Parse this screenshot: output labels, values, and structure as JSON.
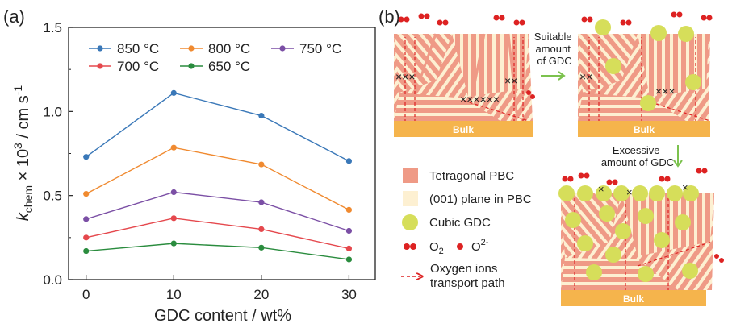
{
  "panel_a": {
    "label": "(a)",
    "chart_data": {
      "type": "line",
      "xlabel": "GDC content / wt%",
      "ylabel_parts": [
        "k",
        "chem",
        " × 10",
        "3",
        " / cm s",
        "-1"
      ],
      "x": [
        0,
        10,
        20,
        30
      ],
      "xticks": [
        "0",
        "10",
        "20",
        "30"
      ],
      "ylim": [
        0.0,
        1.5
      ],
      "yticks": [
        "0.0",
        "0.5",
        "1.0",
        "1.5"
      ],
      "grid": false,
      "legend_placement": "top",
      "series": [
        {
          "name": "850 °C",
          "color": "#3a78b8",
          "values": [
            0.73,
            1.11,
            0.975,
            0.705
          ]
        },
        {
          "name": "800 °C",
          "color": "#f08a30",
          "values": [
            0.51,
            0.785,
            0.685,
            0.415
          ]
        },
        {
          "name": "750 °C",
          "color": "#7b4fa5",
          "values": [
            0.36,
            0.52,
            0.46,
            0.29
          ]
        },
        {
          "name": "700 °C",
          "color": "#e5484d",
          "values": [
            0.25,
            0.365,
            0.3,
            0.185
          ]
        },
        {
          "name": "650 °C",
          "color": "#2a8c3e",
          "values": [
            0.17,
            0.215,
            0.19,
            0.12
          ]
        }
      ]
    }
  },
  "panel_b": {
    "label": "(b)",
    "annotations": {
      "suitable": [
        "Suitable",
        "amount",
        "of GDC"
      ],
      "excessive": [
        "Excessive",
        "amount of GDC"
      ],
      "bulk": "Bulk"
    },
    "legend": {
      "tetragonal": "Tetragonal PBC",
      "plane": "(001) plane in PBC",
      "cubic": "Cubic GDC",
      "o2_main": "O",
      "o2_sub": "2",
      "oion_main": "O",
      "oion_sup": "2-",
      "path_line1": "Oxygen ions",
      "path_line2": "transport path"
    },
    "colors": {
      "pbc": "#ef9a86",
      "plane": "#fdf0d2",
      "gdc": "#d6de5a",
      "bulk": "#f5b44c",
      "oxygen": "#dd2222",
      "arrow_green": "#7cc24e"
    }
  }
}
